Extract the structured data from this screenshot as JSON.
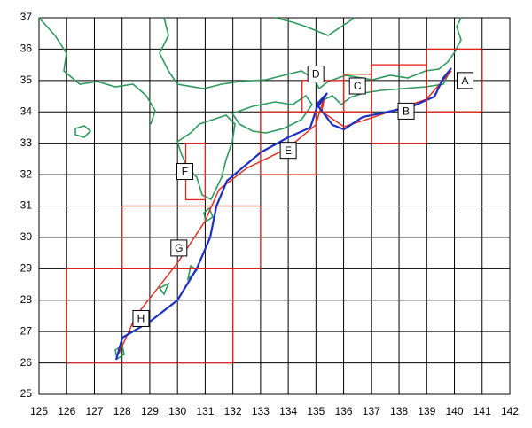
{
  "map": {
    "xlim": [
      125,
      142
    ],
    "ylim": [
      25,
      37
    ],
    "xticks": [
      125,
      126,
      127,
      128,
      129,
      130,
      131,
      132,
      133,
      134,
      135,
      136,
      137,
      138,
      139,
      140,
      141,
      142
    ],
    "yticks": [
      25,
      26,
      27,
      28,
      29,
      30,
      31,
      32,
      33,
      34,
      35,
      36,
      37
    ],
    "regions": [
      {
        "label": "A",
        "lon": [
          139,
          141
        ],
        "lat": [
          34,
          36
        ]
      },
      {
        "label": "B",
        "lon": [
          137,
          139
        ],
        "lat": [
          33,
          35.5
        ]
      },
      {
        "label": "C",
        "lon": [
          136,
          137
        ],
        "lat": [
          34,
          35.2
        ]
      },
      {
        "label": "D",
        "lon": [
          134.5,
          136
        ],
        "lat": [
          34,
          35
        ]
      },
      {
        "label": "E",
        "lon": [
          133,
          135
        ],
        "lat": [
          32,
          34
        ]
      },
      {
        "label": "F",
        "lon": [
          130.3,
          131
        ],
        "lat": [
          31.2,
          33
        ]
      },
      {
        "label": "G",
        "lon": [
          128,
          133
        ],
        "lat": [
          29,
          31
        ]
      },
      {
        "label": "H",
        "lon": [
          126,
          132
        ],
        "lat": [
          26,
          29
        ]
      }
    ]
  }
}
